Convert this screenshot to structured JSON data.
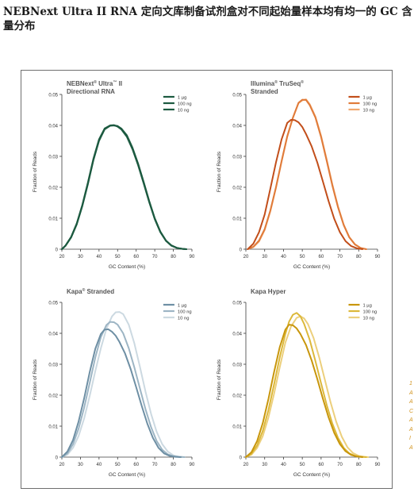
{
  "page": {
    "title": "NEBNext Ultra II RNA 定向文库制备试剂盒对不同起始量样本均有均一的 GC 含量分布"
  },
  "edge_marks": [
    "1",
    "A",
    "A",
    "C",
    "A",
    "A",
    "I",
    "A"
  ],
  "chart_data": [
    {
      "type": "line",
      "title_lines": [
        [
          {
            "text": "NEBNext"
          },
          {
            "text": "®",
            "sup": true
          },
          {
            "text": " Ultra"
          },
          {
            "text": "™",
            "sup": true
          },
          {
            "text": " II"
          }
        ],
        [
          {
            "text": "Directional RNA"
          }
        ]
      ],
      "xlabel": "GC Content (%)",
      "ylabel": "Fraction of Reads",
      "xlim": [
        20,
        90
      ],
      "ylim": [
        0,
        0.05
      ],
      "xticks": [
        20,
        30,
        40,
        50,
        60,
        70,
        80,
        90
      ],
      "yticks": [
        0,
        0.01,
        0.02,
        0.03,
        0.04,
        0.05
      ],
      "ytick_labels": [
        "0",
        "0.01",
        "0.02",
        "0.03",
        "0.04",
        "0.05"
      ],
      "grid": false,
      "legend_position": "top-right",
      "series": [
        {
          "name": "1 µg",
          "color": "#1c5a40",
          "x": [
            20,
            22,
            25,
            28,
            31,
            34,
            37,
            40,
            43,
            46,
            48,
            50,
            52,
            55,
            58,
            61,
            64,
            67,
            70,
            73,
            76,
            79,
            82,
            85,
            87
          ],
          "y": [
            0,
            0.0012,
            0.004,
            0.0083,
            0.0143,
            0.0215,
            0.0293,
            0.0355,
            0.039,
            0.04,
            0.0401,
            0.0396,
            0.0387,
            0.0363,
            0.0323,
            0.0272,
            0.0213,
            0.0152,
            0.0097,
            0.0055,
            0.0027,
            0.0011,
            0.0004,
            0.0001,
            0
          ]
        },
        {
          "name": "100 ng",
          "color": "#1c5a40",
          "x": [
            20,
            22,
            25,
            28,
            31,
            34,
            37,
            40,
            43,
            46,
            48,
            50,
            52,
            55,
            58,
            61,
            64,
            67,
            70,
            73,
            76,
            79,
            82,
            85,
            87
          ],
          "y": [
            0,
            0.0012,
            0.0039,
            0.0082,
            0.0141,
            0.0212,
            0.029,
            0.0352,
            0.0388,
            0.0399,
            0.04,
            0.0397,
            0.0389,
            0.0366,
            0.0326,
            0.0275,
            0.0216,
            0.0154,
            0.0099,
            0.0056,
            0.0028,
            0.0012,
            0.0004,
            0.0001,
            0
          ]
        },
        {
          "name": "10 ng",
          "color": "#1c5a40",
          "x": [
            20,
            22,
            25,
            28,
            31,
            34,
            37,
            40,
            43,
            46,
            48,
            50,
            52,
            55,
            58,
            61,
            64,
            67,
            70,
            73,
            76,
            79,
            82,
            85,
            87
          ],
          "y": [
            0,
            0.0011,
            0.0038,
            0.008,
            0.0139,
            0.021,
            0.0288,
            0.035,
            0.0387,
            0.0399,
            0.04,
            0.0398,
            0.039,
            0.0368,
            0.0328,
            0.0277,
            0.0218,
            0.0156,
            0.01,
            0.0057,
            0.0028,
            0.0012,
            0.0004,
            0.0001,
            0
          ]
        }
      ]
    },
    {
      "type": "line",
      "title_lines": [
        [
          {
            "text": "Illumina"
          },
          {
            "text": "®",
            "sup": true
          },
          {
            "text": " TruSeq"
          },
          {
            "text": "®",
            "sup": true
          }
        ],
        [
          {
            "text": "Stranded"
          }
        ]
      ],
      "xlabel": "GC Content (%)",
      "ylabel": "Fraction of Reads",
      "xlim": [
        20,
        90
      ],
      "ylim": [
        0,
        0.05
      ],
      "xticks": [
        20,
        30,
        40,
        50,
        60,
        70,
        80,
        90
      ],
      "yticks": [
        0,
        0.01,
        0.02,
        0.03,
        0.04,
        0.05
      ],
      "ytick_labels": [
        "0",
        "0.01",
        "0.02",
        "0.03",
        "0.04",
        "0.05"
      ],
      "grid": false,
      "legend_position": "top-right",
      "series": [
        {
          "name": "1 µg",
          "color": "#c24e1a",
          "x": [
            21,
            24,
            27,
            30,
            33,
            36,
            39,
            42,
            44,
            46,
            48,
            50,
            52,
            55,
            58,
            61,
            64,
            67,
            70,
            73,
            76,
            79,
            82
          ],
          "y": [
            0,
            0.0018,
            0.0055,
            0.0112,
            0.0195,
            0.028,
            0.0355,
            0.0408,
            0.0418,
            0.0417,
            0.041,
            0.0395,
            0.0372,
            0.0332,
            0.028,
            0.0218,
            0.0155,
            0.0098,
            0.0055,
            0.0026,
            0.001,
            0.0003,
            0
          ]
        },
        {
          "name": "100 ng",
          "color": "#e07b3a",
          "x": [
            21,
            24,
            27,
            30,
            33,
            36,
            39,
            42,
            45,
            48,
            50,
            52,
            54,
            57,
            60,
            63,
            66,
            69,
            72,
            75,
            78,
            81,
            84
          ],
          "y": [
            0,
            0.0008,
            0.0028,
            0.0065,
            0.0125,
            0.02,
            0.0285,
            0.0365,
            0.0425,
            0.0473,
            0.0483,
            0.0482,
            0.0465,
            0.0425,
            0.0362,
            0.0285,
            0.0205,
            0.0135,
            0.0078,
            0.0038,
            0.0015,
            0.0004,
            0
          ]
        },
        {
          "name": "10 ng",
          "color": "#f0a870",
          "x": [
            21,
            24,
            27,
            30,
            33,
            36,
            39,
            42,
            45,
            48,
            50,
            52,
            54,
            57,
            60,
            63,
            66,
            69,
            72,
            75,
            78,
            81,
            84
          ],
          "y": [
            0,
            0.0007,
            0.0025,
            0.0062,
            0.0122,
            0.0198,
            0.0283,
            0.0363,
            0.0424,
            0.0472,
            0.0481,
            0.0484,
            0.0468,
            0.0428,
            0.0366,
            0.0289,
            0.0209,
            0.0138,
            0.008,
            0.0039,
            0.0016,
            0.0004,
            0
          ]
        }
      ]
    },
    {
      "type": "line",
      "title_lines": [
        [
          {
            "text": "Kapa"
          },
          {
            "text": "®",
            "sup": true
          },
          {
            "text": " Stranded"
          }
        ]
      ],
      "xlabel": "GC Content (%)",
      "ylabel": "Fraction of Reads",
      "xlim": [
        20,
        90
      ],
      "ylim": [
        0,
        0.05
      ],
      "xticks": [
        20,
        30,
        40,
        50,
        60,
        70,
        80,
        90
      ],
      "yticks": [
        0,
        0.01,
        0.02,
        0.03,
        0.04,
        0.05
      ],
      "ytick_labels": [
        "0",
        "0.01",
        "0.02",
        "0.03",
        "0.04",
        "0.05"
      ],
      "grid": false,
      "legend_position": "top-right",
      "series": [
        {
          "name": "1 µg",
          "color": "#6e8fa4",
          "x": [
            20,
            23,
            26,
            29,
            32,
            35,
            38,
            41,
            43,
            45,
            47,
            49,
            51,
            54,
            57,
            60,
            63,
            66,
            69,
            72,
            75,
            78,
            81,
            84
          ],
          "y": [
            0,
            0.0018,
            0.0055,
            0.0115,
            0.019,
            0.0275,
            0.035,
            0.0398,
            0.0412,
            0.0413,
            0.0405,
            0.0392,
            0.0372,
            0.0335,
            0.0285,
            0.0226,
            0.0165,
            0.0108,
            0.0062,
            0.003,
            0.0012,
            0.0004,
            0.0001,
            0
          ]
        },
        {
          "name": "100 ng",
          "color": "#9db5c4",
          "x": [
            20,
            23,
            26,
            29,
            32,
            35,
            38,
            41,
            44,
            46,
            48,
            50,
            53,
            56,
            59,
            62,
            65,
            68,
            71,
            74,
            77,
            80,
            83,
            86
          ],
          "y": [
            0,
            0.0012,
            0.0042,
            0.0092,
            0.016,
            0.024,
            0.0322,
            0.0388,
            0.0427,
            0.0437,
            0.0436,
            0.0428,
            0.04,
            0.0352,
            0.029,
            0.0222,
            0.0155,
            0.0097,
            0.0052,
            0.0024,
            0.0009,
            0.0003,
            0.0001,
            0
          ]
        },
        {
          "name": "10 ng",
          "color": "#ccd9e1",
          "x": [
            20,
            23,
            26,
            29,
            32,
            35,
            38,
            41,
            44,
            47,
            49,
            51,
            53,
            56,
            59,
            62,
            65,
            68,
            71,
            74,
            77,
            80,
            83,
            86
          ],
          "y": [
            0,
            0.0008,
            0.003,
            0.0068,
            0.0125,
            0.0198,
            0.0278,
            0.0352,
            0.0415,
            0.0455,
            0.0468,
            0.0469,
            0.0462,
            0.0428,
            0.0368,
            0.0292,
            0.0212,
            0.014,
            0.0082,
            0.0042,
            0.0018,
            0.0006,
            0.0001,
            0
          ]
        }
      ]
    },
    {
      "type": "line",
      "title_lines": [
        [
          {
            "text": "Kapa Hyper"
          }
        ]
      ],
      "xlabel": "GC Content (%)",
      "ylabel": "Fraction of Reads",
      "xlim": [
        20,
        90
      ],
      "ylim": [
        0,
        0.05
      ],
      "xticks": [
        20,
        30,
        40,
        50,
        60,
        70,
        80,
        90
      ],
      "yticks": [
        0,
        0.01,
        0.02,
        0.03,
        0.04,
        0.05
      ],
      "ytick_labels": [
        "0",
        "0.01",
        "0.02",
        "0.03",
        "0.04",
        "0.05"
      ],
      "grid": false,
      "legend_position": "top-right",
      "series": [
        {
          "name": "1 µg",
          "color": "#c8960c",
          "x": [
            20,
            23,
            26,
            29,
            32,
            35,
            38,
            41,
            43,
            45,
            47,
            49,
            52,
            55,
            58,
            61,
            64,
            67,
            70,
            73,
            76,
            79,
            82
          ],
          "y": [
            0,
            0.0016,
            0.0052,
            0.011,
            0.0188,
            0.0275,
            0.0355,
            0.0412,
            0.0428,
            0.0426,
            0.0416,
            0.0398,
            0.0362,
            0.0312,
            0.0252,
            0.0188,
            0.0128,
            0.0078,
            0.0042,
            0.0019,
            0.0007,
            0.0002,
            0
          ]
        },
        {
          "name": "100 ng",
          "color": "#dcb83a",
          "x": [
            20,
            23,
            26,
            29,
            32,
            35,
            38,
            41,
            43,
            45,
            47,
            49,
            51,
            54,
            57,
            60,
            63,
            66,
            69,
            72,
            75,
            78,
            81,
            84
          ],
          "y": [
            0,
            0.0011,
            0.0038,
            0.0085,
            0.0152,
            0.0235,
            0.0322,
            0.0398,
            0.0438,
            0.046,
            0.0466,
            0.0455,
            0.043,
            0.0378,
            0.031,
            0.0238,
            0.0168,
            0.0108,
            0.0062,
            0.003,
            0.0012,
            0.0004,
            0.0001,
            0
          ]
        },
        {
          "name": "10 ng",
          "color": "#eccf7c",
          "x": [
            20,
            23,
            26,
            29,
            32,
            35,
            38,
            41,
            44,
            47,
            49,
            51,
            53,
            56,
            59,
            62,
            65,
            68,
            71,
            74,
            77,
            80,
            83,
            85
          ],
          "y": [
            0,
            0.0008,
            0.003,
            0.0068,
            0.0128,
            0.0205,
            0.029,
            0.037,
            0.0422,
            0.045,
            0.0455,
            0.0448,
            0.043,
            0.0385,
            0.0322,
            0.025,
            0.0178,
            0.0115,
            0.0066,
            0.0032,
            0.0013,
            0.0004,
            0.0001,
            0
          ]
        }
      ]
    }
  ]
}
